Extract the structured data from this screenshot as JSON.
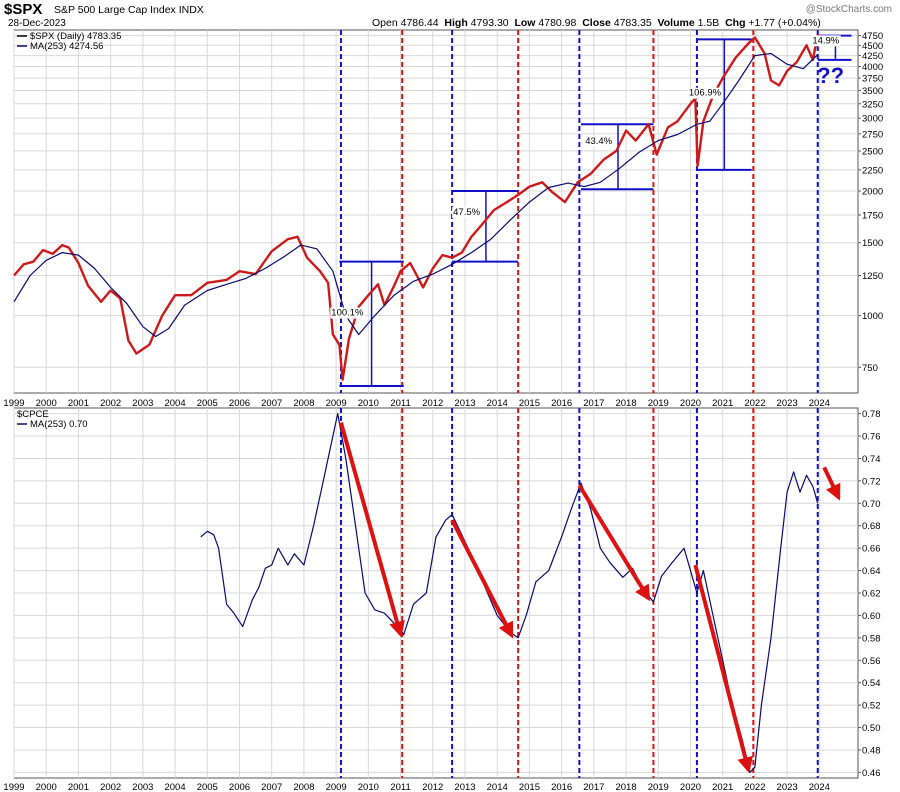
{
  "header": {
    "symbol": "$SPX",
    "description": "S&P 500 Large Cap Index INDX",
    "date": "28-Dec-2023",
    "open_label": "Open",
    "open": "4786.44",
    "high_label": "High",
    "high": "4793.30",
    "low_label": "Low",
    "low": "4780.98",
    "close_label": "Close",
    "close": "4783.35",
    "volume_label": "Volume",
    "volume": "1.5B",
    "chg_label": "Chg",
    "chg": "+1.77 (+0.04%)",
    "watermark": "@StockCharts.com"
  },
  "colors": {
    "price": "#cc1a1a",
    "ma": "#0a0a6e",
    "blue": "#1010c8",
    "red": "#dd1111",
    "grid": "#d8d8d8"
  },
  "chart_data": [
    {
      "type": "line",
      "id": "spx",
      "scale": "log",
      "ylim": [
        650,
        4900
      ],
      "xlim": [
        1999.0,
        2025.2
      ],
      "legend": [
        {
          "name": "$SPX (Daily) 4783.35"
        },
        {
          "name": "MA(253) 4274.56"
        }
      ],
      "yticks": [
        750,
        1000,
        1250,
        1500,
        1750,
        2000,
        2250,
        2500,
        2750,
        3000,
        3250,
        3500,
        3750,
        4000,
        4250,
        4500,
        4750
      ],
      "xticks": [
        "1999",
        "2000",
        "2001",
        "2002",
        "2003",
        "2004",
        "2005",
        "2006",
        "2007",
        "2008",
        "2009",
        "2010",
        "2011",
        "2012",
        "2013",
        "2014",
        "2015",
        "2016",
        "2017",
        "2018",
        "2019",
        "2020",
        "2021",
        "2022",
        "2023",
        "2024"
      ],
      "series": [
        {
          "role": "price",
          "x": [
            1999.0,
            1999.3,
            1999.6,
            1999.9,
            2000.2,
            2000.5,
            2000.7,
            2001.0,
            2001.3,
            2001.7,
            2002.0,
            2002.3,
            2002.55,
            2002.8,
            2003.2,
            2003.6,
            2004.0,
            2004.5,
            2005.0,
            2005.6,
            2006.0,
            2006.5,
            2007.0,
            2007.5,
            2007.8,
            2008.1,
            2008.5,
            2008.75,
            2008.9,
            2009.1,
            2009.2,
            2009.4,
            2009.7,
            2010.0,
            2010.3,
            2010.5,
            2010.8,
            2011.0,
            2011.3,
            2011.7,
            2012.0,
            2012.3,
            2012.6,
            2012.9,
            2013.2,
            2013.5,
            2013.9,
            2014.3,
            2014.7,
            2015.0,
            2015.4,
            2015.7,
            2016.1,
            2016.5,
            2016.9,
            2017.3,
            2017.7,
            2018.0,
            2018.3,
            2018.7,
            2018.95,
            2019.3,
            2019.6,
            2020.0,
            2020.15,
            2020.22,
            2020.4,
            2020.7,
            2021.0,
            2021.4,
            2021.8,
            2022.0,
            2022.3,
            2022.5,
            2022.75,
            2023.0,
            2023.3,
            2023.6,
            2023.8,
            2023.95
          ],
          "values": [
            1250,
            1330,
            1350,
            1440,
            1410,
            1480,
            1460,
            1340,
            1180,
            1080,
            1150,
            1100,
            870,
            810,
            850,
            1000,
            1120,
            1120,
            1200,
            1220,
            1280,
            1260,
            1430,
            1530,
            1550,
            1380,
            1280,
            1200,
            900,
            850,
            700,
            880,
            1050,
            1120,
            1190,
            1060,
            1180,
            1280,
            1340,
            1170,
            1300,
            1400,
            1380,
            1420,
            1550,
            1650,
            1800,
            1880,
            1970,
            2050,
            2100,
            1990,
            1880,
            2100,
            2200,
            2380,
            2500,
            2800,
            2650,
            2900,
            2450,
            2850,
            2950,
            3250,
            3350,
            2300,
            2950,
            3400,
            3750,
            4200,
            4550,
            4700,
            4300,
            3700,
            3600,
            3900,
            4100,
            4500,
            4150,
            4783
          ]
        },
        {
          "role": "ma",
          "x": [
            1999.0,
            1999.5,
            2000.0,
            2000.5,
            2001.0,
            2001.5,
            2002.0,
            2002.5,
            2003.0,
            2003.4,
            2003.8,
            2004.3,
            2005.0,
            2005.6,
            2006.2,
            2006.8,
            2007.4,
            2007.9,
            2008.4,
            2008.9,
            2009.3,
            2009.7,
            2010.2,
            2010.8,
            2011.4,
            2012.0,
            2012.6,
            2013.2,
            2013.8,
            2014.4,
            2015.0,
            2015.6,
            2016.2,
            2016.7,
            2017.2,
            2017.8,
            2018.4,
            2019.0,
            2019.6,
            2020.2,
            2020.6,
            2021.0,
            2021.5,
            2022.0,
            2022.5,
            2023.0,
            2023.5,
            2023.95
          ],
          "values": [
            1080,
            1250,
            1360,
            1420,
            1400,
            1300,
            1170,
            1070,
            940,
            890,
            930,
            1060,
            1150,
            1190,
            1230,
            1300,
            1390,
            1480,
            1450,
            1280,
            1000,
            900,
            1000,
            1120,
            1210,
            1260,
            1330,
            1420,
            1530,
            1700,
            1880,
            2040,
            2090,
            2050,
            2100,
            2270,
            2480,
            2650,
            2740,
            2900,
            2950,
            3250,
            3700,
            4250,
            4300,
            4050,
            3950,
            4274
          ]
        }
      ],
      "annotations": [
        {
          "label": "100.1%",
          "x": 2009.35,
          "y": 1000
        },
        {
          "label": "47.5%",
          "x": 2013.05,
          "y": 1750
        },
        {
          "label": "43.4%",
          "x": 2017.15,
          "y": 2600
        },
        {
          "label": "106.9%",
          "x": 2020.45,
          "y": 3400
        },
        {
          "label": "14.9%",
          "x": 2024.2,
          "y": 4550
        },
        {
          "label": "??",
          "x": 2024.35,
          "y": 3650
        }
      ],
      "boxes": [
        {
          "x0": 2009.1,
          "x1": 2011.1,
          "y0": 676,
          "y1": 1350,
          "mid": 2010.1
        },
        {
          "x0": 2012.6,
          "x1": 2014.65,
          "y0": 1350,
          "y1": 2000,
          "mid": 2013.65
        },
        {
          "x0": 2016.6,
          "x1": 2018.85,
          "y0": 2020,
          "y1": 2900,
          "mid": 2017.75
        },
        {
          "x0": 2020.2,
          "x1": 2021.9,
          "y0": 2250,
          "y1": 4650,
          "mid": 2021.05
        },
        {
          "x0": 2023.95,
          "x1": 2025.0,
          "y0": 4150,
          "y1": 4750,
          "mid": 2024.5
        }
      ]
    },
    {
      "type": "line",
      "id": "cpce",
      "ylim": [
        0.455,
        0.785
      ],
      "xlim": [
        1999.0,
        2025.2
      ],
      "legend": [
        {
          "name": "$CPCE"
        },
        {
          "name": "MA(253) 0.70"
        }
      ],
      "yticks": [
        0.46,
        0.48,
        0.5,
        0.52,
        0.54,
        0.56,
        0.58,
        0.6,
        0.62,
        0.64,
        0.66,
        0.68,
        0.7,
        0.72,
        0.74,
        0.76,
        0.78
      ],
      "ytick_labels": [
        "0.46",
        "0.48",
        "0.50",
        "0.52",
        "0.54",
        "0.56",
        "0.58",
        "0.60",
        "0.62",
        "0.64",
        "0.66",
        "0.68",
        "0.70",
        "0.72",
        "0.74",
        "0.76",
        "0.78"
      ],
      "xticks": [
        "1999",
        "2000",
        "2001",
        "2002",
        "2003",
        "2004",
        "2005",
        "2006",
        "2007",
        "2008",
        "2009",
        "2010",
        "2011",
        "2012",
        "2013",
        "2014",
        "2015",
        "2016",
        "2017",
        "2018",
        "2019",
        "2020",
        "2021",
        "2022",
        "2023",
        "2024"
      ],
      "series": [
        {
          "role": "ma",
          "x": [
            2004.8,
            2005.0,
            2005.2,
            2005.35,
            2005.6,
            2005.8,
            2006.1,
            2006.4,
            2006.6,
            2006.8,
            2007.0,
            2007.2,
            2007.5,
            2007.7,
            2008.0,
            2008.3,
            2008.6,
            2008.9,
            2009.05,
            2009.3,
            2009.6,
            2009.9,
            2010.2,
            2010.5,
            2010.9,
            2011.1,
            2011.4,
            2011.8,
            2012.1,
            2012.4,
            2012.6,
            2012.9,
            2013.3,
            2013.7,
            2014.0,
            2014.4,
            2014.65,
            2014.9,
            2015.2,
            2015.6,
            2016.0,
            2016.3,
            2016.6,
            2016.9,
            2017.2,
            2017.5,
            2017.9,
            2018.2,
            2018.5,
            2018.85,
            2019.1,
            2019.4,
            2019.8,
            2020.0,
            2020.2,
            2020.4,
            2020.7,
            2021.0,
            2021.3,
            2021.6,
            2021.85,
            2022.0,
            2022.2,
            2022.5,
            2022.8,
            2023.0,
            2023.2,
            2023.4,
            2023.6,
            2023.8,
            2023.95
          ],
          "values": [
            0.67,
            0.675,
            0.672,
            0.66,
            0.61,
            0.603,
            0.59,
            0.614,
            0.625,
            0.642,
            0.645,
            0.66,
            0.645,
            0.655,
            0.645,
            0.68,
            0.72,
            0.76,
            0.78,
            0.74,
            0.68,
            0.62,
            0.605,
            0.602,
            0.59,
            0.583,
            0.61,
            0.62,
            0.67,
            0.685,
            0.69,
            0.672,
            0.647,
            0.62,
            0.6,
            0.585,
            0.58,
            0.6,
            0.63,
            0.64,
            0.67,
            0.695,
            0.718,
            0.695,
            0.66,
            0.647,
            0.634,
            0.642,
            0.625,
            0.612,
            0.635,
            0.646,
            0.66,
            0.64,
            0.62,
            0.64,
            0.6,
            0.56,
            0.52,
            0.49,
            0.46,
            0.465,
            0.52,
            0.58,
            0.66,
            0.71,
            0.728,
            0.71,
            0.725,
            0.715,
            0.7
          ]
        }
      ],
      "arrows": [
        {
          "x0": 2009.15,
          "y0": 0.772,
          "x1": 2011.0,
          "y1": 0.583
        },
        {
          "x0": 2012.6,
          "y0": 0.685,
          "x1": 2014.45,
          "y1": 0.582
        },
        {
          "x0": 2016.55,
          "y0": 0.716,
          "x1": 2018.7,
          "y1": 0.615
        },
        {
          "x0": 2020.15,
          "y0": 0.645,
          "x1": 2021.8,
          "y1": 0.462
        },
        {
          "x0": 2024.15,
          "y0": 0.732,
          "x1": 2024.6,
          "y1": 0.705
        }
      ]
    }
  ],
  "vlines": {
    "blue": [
      2009.15,
      2012.6,
      2016.55,
      2020.2,
      2023.95
    ],
    "red": [
      2011.05,
      2014.65,
      2018.85,
      2021.95
    ]
  }
}
